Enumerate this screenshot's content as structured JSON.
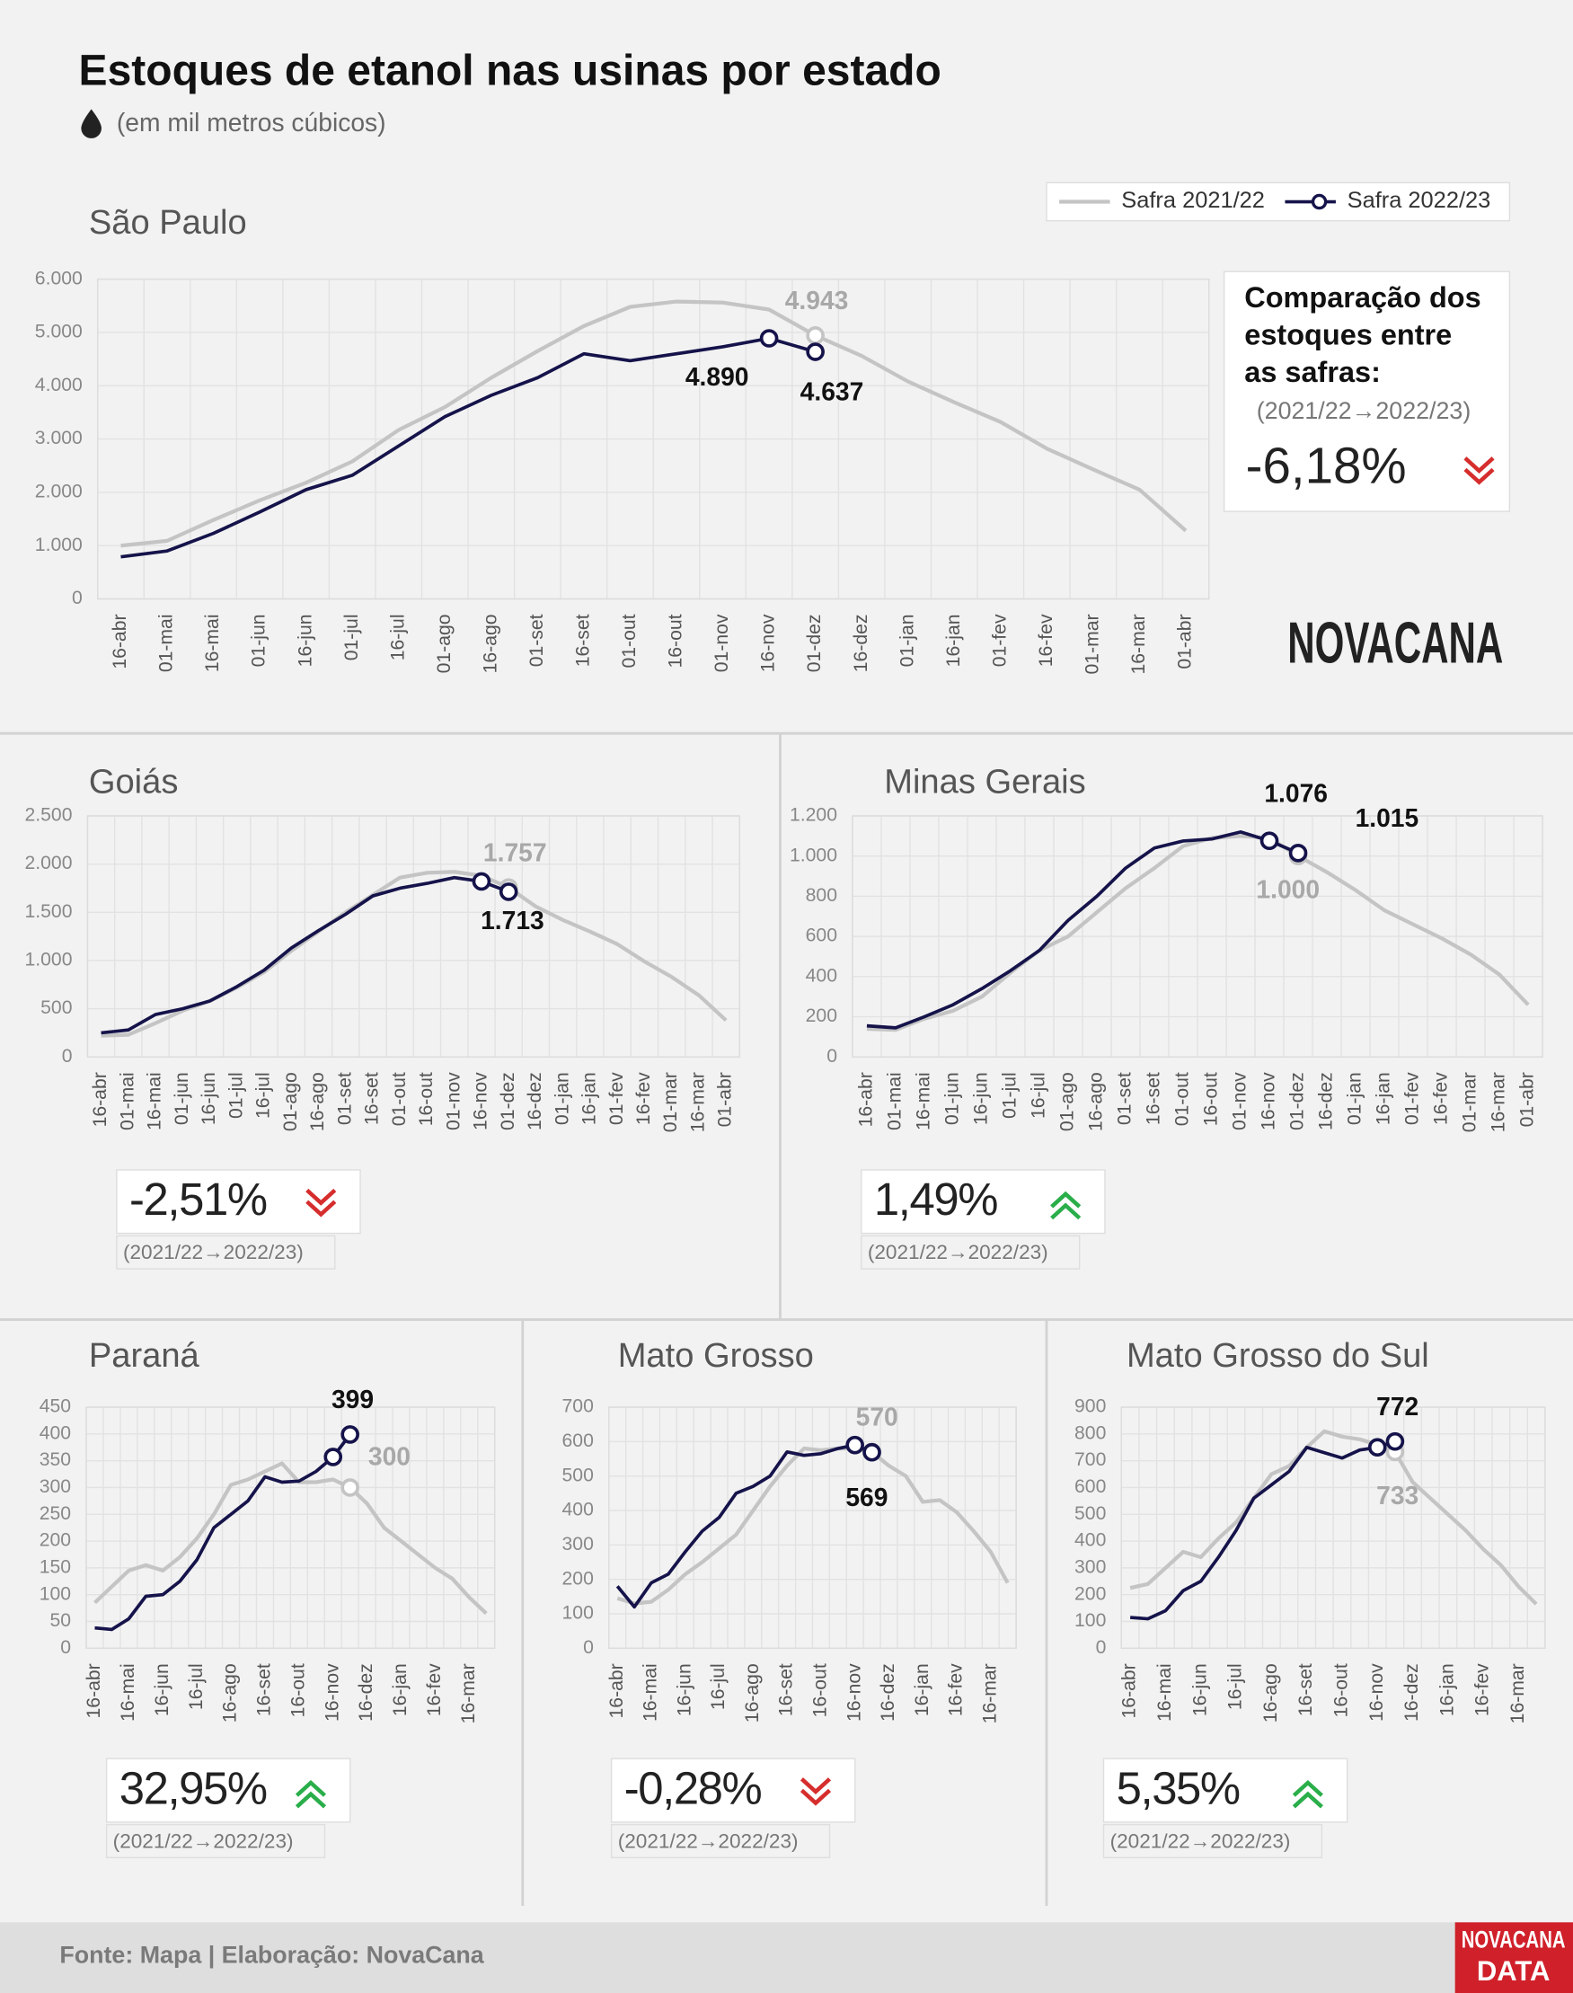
{
  "header": {
    "title": "Estoques de etanol nas usinas por estado",
    "subtitle": "(em mil metros cúbicos)"
  },
  "brand": "NOVACANA",
  "footer": {
    "source": "Fonte: Mapa | Elaboração: NovaCana",
    "badge": [
      "NOVACANA",
      "DATA"
    ]
  },
  "chart_data": [
    {
      "type": "line",
      "title": "São Paulo",
      "categories": [
        "16-abr",
        "01-mai",
        "16-mai",
        "01-jun",
        "16-jun",
        "01-jul",
        "16-jul",
        "01-ago",
        "16-ago",
        "01-set",
        "16-set",
        "01-out",
        "16-out",
        "01-nov",
        "16-nov",
        "01-dez",
        "16-dez",
        "01-jan",
        "16-jan",
        "01-fev",
        "16-fev",
        "01-mar",
        "16-mar",
        "01-abr"
      ],
      "series": [
        {
          "name": "Safra 2021/22",
          "color": "#c4c4c4",
          "values": [
            1000,
            1090,
            1480,
            1850,
            2180,
            2580,
            3170,
            3600,
            4150,
            4650,
            5120,
            5480,
            5580,
            5560,
            5430,
            4943,
            4560,
            4080,
            3690,
            3320,
            2820,
            2430,
            2050,
            1280
          ],
          "value_labels": [
            null,
            null,
            null,
            null,
            null,
            null,
            null,
            null,
            null,
            null,
            null,
            null,
            null,
            null,
            null,
            "4.943",
            null,
            null,
            null,
            null,
            null,
            null,
            null,
            null
          ]
        },
        {
          "name": "Safra 2022/23",
          "color": "#15134a",
          "values": [
            790,
            900,
            1230,
            1630,
            2050,
            2320,
            2870,
            3420,
            3820,
            4150,
            4600,
            4470,
            4600,
            4730,
            4890,
            4637,
            null,
            null,
            null,
            null,
            null,
            null,
            null,
            null
          ],
          "value_labels": [
            null,
            null,
            null,
            null,
            null,
            null,
            null,
            null,
            null,
            null,
            null,
            null,
            null,
            null,
            "4.890",
            "4.637",
            null,
            null,
            null,
            null,
            null,
            null,
            null,
            null
          ]
        }
      ],
      "ylim": [
        0,
        6000
      ],
      "yticks": [
        0,
        {
          "value": 1000,
          "label": "1.000"
        },
        {
          "value": 2000,
          "label": "2.000"
        },
        {
          "value": 3000,
          "label": "3.000"
        },
        {
          "value": 4000,
          "label": "4.000"
        },
        {
          "value": 5000,
          "label": "5.000"
        },
        {
          "value": 6000,
          "label": "6.000"
        }
      ],
      "grid": true,
      "comparison": {
        "heading": [
          "Comparação dos",
          "estoques entre",
          "as safras:"
        ],
        "period": "(2021/22→2022/23)",
        "change": "-6,18%",
        "trend": "down"
      }
    },
    {
      "type": "line",
      "title": "Goiás",
      "categories": [
        "16-abr",
        "01-mai",
        "16-mai",
        "01-jun",
        "16-jun",
        "01-jul",
        "16-jul",
        "01-ago",
        "16-ago",
        "01-set",
        "16-set",
        "01-out",
        "16-out",
        "01-nov",
        "16-nov",
        "01-dez",
        "16-dez",
        "01-jan",
        "16-jan",
        "01-fev",
        "16-fev",
        "01-mar",
        "16-mar",
        "01-abr"
      ],
      "series": [
        {
          "color": "#c4c4c4",
          "values": [
            220,
            230,
            350,
            480,
            580,
            720,
            880,
            1100,
            1300,
            1500,
            1680,
            1860,
            1910,
            1920,
            1880,
            1757,
            1560,
            1420,
            1300,
            1170,
            990,
            830,
            640,
            380
          ],
          "value_labels": [
            null,
            null,
            null,
            null,
            null,
            null,
            null,
            null,
            null,
            null,
            null,
            null,
            null,
            null,
            null,
            "1.757",
            null,
            null,
            null,
            null,
            null,
            null,
            null,
            null
          ]
        },
        {
          "color": "#15134a",
          "values": [
            250,
            280,
            440,
            500,
            580,
            730,
            900,
            1130,
            1310,
            1480,
            1670,
            1750,
            1800,
            1860,
            1820,
            1713,
            null,
            null,
            null,
            null,
            null,
            null,
            null,
            null
          ],
          "value_labels": [
            null,
            null,
            null,
            null,
            null,
            null,
            null,
            null,
            null,
            null,
            null,
            null,
            null,
            null,
            null,
            "1.713",
            null,
            null,
            null,
            null,
            null,
            null,
            null,
            null
          ]
        }
      ],
      "ylim": [
        0,
        2500
      ],
      "yticks": [
        0,
        500,
        {
          "value": 1000,
          "label": "1.000"
        },
        {
          "value": 1500,
          "label": "1.500"
        },
        {
          "value": 2000,
          "label": "2.000"
        },
        {
          "value": 2500,
          "label": "2.500"
        }
      ],
      "grid": true,
      "comparison": {
        "period": "(2021/22→2022/23)",
        "change": "-2,51%",
        "trend": "down"
      }
    },
    {
      "type": "line",
      "title": "Minas Gerais",
      "categories": [
        "16-abr",
        "01-mai",
        "16-mai",
        "01-jun",
        "16-jun",
        "01-jul",
        "16-jul",
        "01-ago",
        "16-ago",
        "01-set",
        "16-set",
        "01-out",
        "16-out",
        "01-nov",
        "16-nov",
        "01-dez",
        "16-dez",
        "01-jan",
        "16-jan",
        "01-fev",
        "16-fev",
        "01-mar",
        "16-mar",
        "01-abr"
      ],
      "series": [
        {
          "color": "#c4c4c4",
          "values": [
            140,
            135,
            190,
            230,
            300,
            420,
            530,
            600,
            720,
            840,
            940,
            1050,
            1090,
            1100,
            1090,
            1000,
            920,
            830,
            730,
            660,
            590,
            510,
            410,
            260
          ],
          "value_labels": [
            null,
            null,
            null,
            null,
            null,
            null,
            null,
            null,
            null,
            null,
            null,
            null,
            null,
            null,
            null,
            "1.000",
            null,
            null,
            null,
            null,
            null,
            null,
            null,
            null
          ]
        },
        {
          "color": "#15134a",
          "values": [
            155,
            145,
            200,
            260,
            340,
            430,
            530,
            680,
            800,
            940,
            1040,
            1075,
            1085,
            1120,
            1076,
            1015,
            null,
            null,
            null,
            null,
            null,
            null,
            null,
            null
          ],
          "value_labels": [
            null,
            null,
            null,
            null,
            null,
            null,
            null,
            null,
            null,
            null,
            null,
            null,
            null,
            null,
            "1.076",
            "1.015",
            null,
            null,
            null,
            null,
            null,
            null,
            null,
            null
          ]
        }
      ],
      "ylim": [
        0,
        1200
      ],
      "yticks": [
        0,
        200,
        400,
        600,
        800,
        {
          "value": 1000,
          "label": "1.000"
        },
        {
          "value": 1200,
          "label": "1.200"
        }
      ],
      "grid": true,
      "comparison": {
        "period": "(2021/22→2022/23)",
        "change": "1,49%",
        "trend": "up"
      }
    },
    {
      "type": "line",
      "title": "Paraná",
      "categories": [
        "16-abr",
        null,
        "16-mai",
        null,
        "16-jun",
        null,
        "16-jul",
        null,
        "16-ago",
        null,
        "16-set",
        null,
        "16-out",
        null,
        "16-nov",
        null,
        "16-dez",
        null,
        "16-jan",
        null,
        "16-fev",
        null,
        "16-mar",
        null
      ],
      "series": [
        {
          "color": "#c4c4c4",
          "values": [
            85,
            115,
            145,
            155,
            145,
            170,
            205,
            250,
            305,
            315,
            330,
            345,
            310,
            310,
            315,
            300,
            270,
            225,
            200,
            175,
            150,
            130,
            95,
            65
          ],
          "value_labels": [
            null,
            null,
            null,
            null,
            null,
            null,
            null,
            null,
            null,
            null,
            null,
            null,
            null,
            null,
            null,
            "300",
            null,
            null,
            null,
            null,
            null,
            null,
            null,
            null
          ]
        },
        {
          "color": "#15134a",
          "values": [
            38,
            35,
            55,
            97,
            100,
            125,
            165,
            225,
            250,
            275,
            320,
            310,
            312,
            330,
            357,
            399,
            null,
            null,
            null,
            null,
            null,
            null,
            null,
            null
          ],
          "value_labels": [
            null,
            null,
            null,
            null,
            null,
            null,
            null,
            null,
            null,
            null,
            null,
            null,
            null,
            null,
            null,
            "399",
            null,
            null,
            null,
            null,
            null,
            null,
            null,
            null
          ]
        }
      ],
      "ylim": [
        0,
        450
      ],
      "yticks": [
        0,
        50,
        100,
        150,
        200,
        250,
        300,
        350,
        400,
        450
      ],
      "grid": true,
      "comparison": {
        "period": "(2021/22→2022/23)",
        "change": "32,95%",
        "trend": "up"
      }
    },
    {
      "type": "line",
      "title": "Mato Grosso",
      "categories": [
        "16-abr",
        null,
        "16-mai",
        null,
        "16-jun",
        null,
        "16-jul",
        null,
        "16-ago",
        null,
        "16-set",
        null,
        "16-out",
        null,
        "16-nov",
        null,
        "16-dez",
        null,
        "16-jan",
        null,
        "16-fev",
        null,
        "16-mar",
        null
      ],
      "series": [
        {
          "color": "#c4c4c4",
          "values": [
            145,
            130,
            135,
            170,
            215,
            250,
            290,
            330,
            400,
            470,
            530,
            580,
            575,
            580,
            580,
            570,
            530,
            500,
            425,
            430,
            395,
            340,
            280,
            190
          ],
          "value_labels": [
            null,
            null,
            null,
            null,
            null,
            null,
            null,
            null,
            null,
            null,
            null,
            null,
            null,
            null,
            null,
            "570",
            null,
            null,
            null,
            null,
            null,
            null,
            null,
            null
          ]
        },
        {
          "color": "#15134a",
          "values": [
            180,
            120,
            190,
            215,
            280,
            340,
            380,
            450,
            470,
            500,
            570,
            560,
            565,
            580,
            590,
            569,
            null,
            null,
            null,
            null,
            null,
            null,
            null,
            null
          ],
          "value_labels": [
            null,
            null,
            null,
            null,
            null,
            null,
            null,
            null,
            null,
            null,
            null,
            null,
            null,
            null,
            null,
            "569",
            null,
            null,
            null,
            null,
            null,
            null,
            null,
            null
          ]
        }
      ],
      "ylim": [
        0,
        700
      ],
      "yticks": [
        0,
        100,
        200,
        300,
        400,
        500,
        600,
        700
      ],
      "grid": true,
      "comparison": {
        "period": "(2021/22→2022/23)",
        "change": "-0,28%",
        "trend": "down"
      }
    },
    {
      "type": "line",
      "title": "Mato Grosso do Sul",
      "categories": [
        "16-abr",
        null,
        "16-mai",
        null,
        "16-jun",
        null,
        "16-jul",
        null,
        "16-ago",
        null,
        "16-set",
        null,
        "16-out",
        null,
        "16-nov",
        null,
        "16-dez",
        null,
        "16-jan",
        null,
        "16-fev",
        null,
        "16-mar",
        null
      ],
      "series": [
        {
          "color": "#c4c4c4",
          "values": [
            225,
            240,
            300,
            360,
            340,
            410,
            470,
            560,
            650,
            680,
            750,
            810,
            790,
            780,
            760,
            733,
            620,
            560,
            500,
            440,
            370,
            310,
            230,
            165
          ],
          "value_labels": [
            null,
            null,
            null,
            null,
            null,
            null,
            null,
            null,
            null,
            null,
            null,
            null,
            null,
            null,
            null,
            "733",
            null,
            null,
            null,
            null,
            null,
            null,
            null,
            null
          ]
        },
        {
          "color": "#15134a",
          "values": [
            115,
            110,
            140,
            215,
            250,
            340,
            440,
            560,
            610,
            660,
            750,
            730,
            710,
            740,
            750,
            772,
            null,
            null,
            null,
            null,
            null,
            null,
            null,
            null
          ],
          "value_labels": [
            null,
            null,
            null,
            null,
            null,
            null,
            null,
            null,
            null,
            null,
            null,
            null,
            null,
            null,
            null,
            "772",
            null,
            null,
            null,
            null,
            null,
            null,
            null,
            null
          ]
        }
      ],
      "ylim": [
        0,
        900
      ],
      "yticks": [
        0,
        100,
        200,
        300,
        400,
        500,
        600,
        700,
        800,
        900
      ],
      "grid": true,
      "comparison": {
        "period": "(2021/22→2022/23)",
        "change": "5,35%",
        "trend": "up"
      }
    }
  ]
}
